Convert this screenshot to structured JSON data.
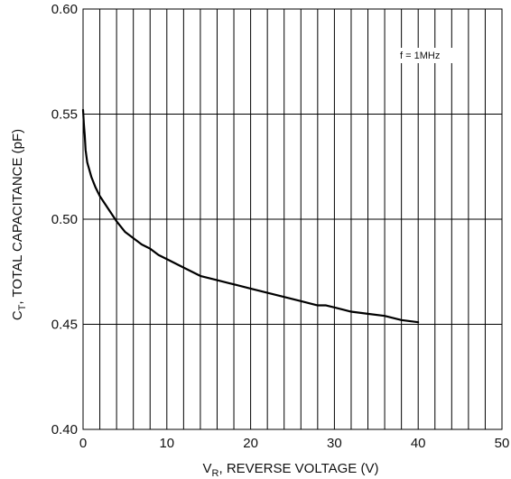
{
  "chart_data": {
    "type": "line",
    "title": "",
    "xlabel": {
      "main": "V",
      "sub": "R",
      "rest": ", REVERSE VOLTAGE (V)"
    },
    "ylabel": {
      "main": "C",
      "sub": "T",
      "rest": ", TOTAL CAPACITANCE (pF)"
    },
    "xlim": [
      0,
      50
    ],
    "ylim": [
      0.4,
      0.6
    ],
    "x_ticks": [
      0,
      10,
      20,
      30,
      40,
      50
    ],
    "y_ticks": [
      0.4,
      0.45,
      0.5,
      0.55,
      0.6
    ],
    "x_tick_labels": [
      "0",
      "10",
      "20",
      "30",
      "40",
      "50"
    ],
    "y_tick_labels": [
      "0.40",
      "0.45",
      "0.50",
      "0.55",
      "0.60"
    ],
    "grid": {
      "vertical_step": 2,
      "horizontal_at": [
        0.45,
        0.5,
        0.55
      ]
    },
    "legend": "none",
    "annotation": "f = 1MHz",
    "series": [
      {
        "color": "#000000",
        "x": [
          0,
          0.1,
          0.2,
          0.3,
          0.5,
          1,
          1.5,
          2,
          3,
          4,
          5,
          6,
          7,
          8,
          9,
          10,
          12,
          14,
          16,
          18,
          20,
          22,
          24,
          26,
          28,
          29,
          30,
          32,
          34,
          36,
          38,
          40
        ],
        "y": [
          0.552,
          0.545,
          0.54,
          0.533,
          0.527,
          0.52,
          0.515,
          0.511,
          0.505,
          0.499,
          0.494,
          0.491,
          0.488,
          0.486,
          0.483,
          0.481,
          0.477,
          0.473,
          0.471,
          0.469,
          0.467,
          0.465,
          0.463,
          0.461,
          0.459,
          0.459,
          0.458,
          0.456,
          0.455,
          0.454,
          0.452,
          0.451
        ]
      }
    ]
  }
}
